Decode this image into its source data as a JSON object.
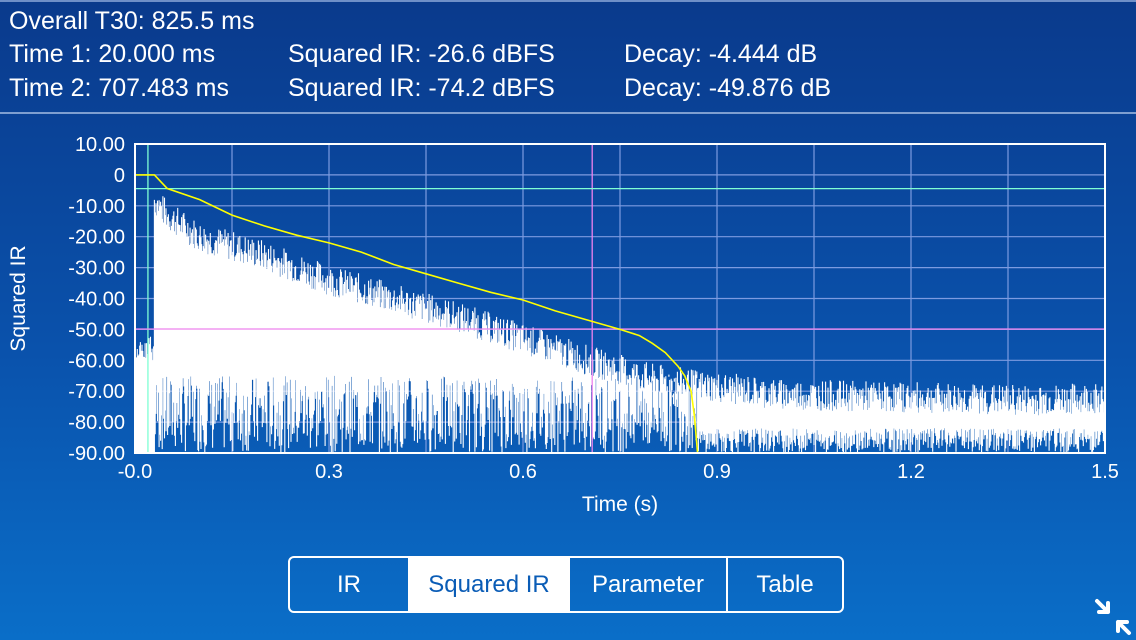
{
  "header": {
    "overall": "Overall T30:  825.5 ms",
    "time1": "Time 1: 20.000 ms",
    "sq1": "Squared IR: -26.6 dBFS",
    "decay1": "Decay: -4.444 dB",
    "time2": "Time 2: 707.483 ms",
    "sq2": "Squared IR: -74.2 dBFS",
    "decay2": "Decay: -49.876 dB"
  },
  "chart_data": {
    "type": "line",
    "xlabel": "Time (s)",
    "ylabel": "Squared IR",
    "xlim": [
      0,
      1.5
    ],
    "ylim": [
      -90,
      10
    ],
    "x_ticks": [
      "-0.0",
      "0.3",
      "0.6",
      "0.9",
      "1.2",
      "1.5"
    ],
    "y_ticks": [
      "10.00",
      "0",
      "-10.00",
      "-20.00",
      "-30.00",
      "-40.00",
      "-50.00",
      "-60.00",
      "-70.00",
      "-80.00",
      "-90.00"
    ],
    "grid": true,
    "series": [
      {
        "color": "#ffff00",
        "x": [
          0,
          0.03,
          0.05,
          0.1,
          0.15,
          0.2,
          0.25,
          0.3,
          0.35,
          0.4,
          0.45,
          0.5,
          0.55,
          0.6,
          0.65,
          0.7,
          0.75,
          0.78,
          0.8,
          0.82,
          0.84,
          0.85,
          0.86,
          0.865,
          0.87
        ],
        "y": [
          0,
          0,
          -4.4,
          -8,
          -13,
          -16.5,
          -19.5,
          -22,
          -25,
          -29,
          -32,
          -35,
          -38,
          -40.5,
          -44,
          -47,
          -50,
          -52,
          -54.5,
          -57.5,
          -62,
          -65,
          -70,
          -78,
          -90
        ]
      },
      {
        "color": "#ffffff",
        "x": [
          0.03,
          0.05,
          0.1,
          0.2,
          0.3,
          0.4,
          0.5,
          0.6,
          0.7,
          0.8,
          0.87,
          1.0,
          1.2,
          1.4,
          1.5
        ],
        "y": [
          -10,
          -15,
          -22,
          -28,
          -36,
          -42,
          -48,
          -55,
          -62,
          -68,
          -70,
          -73,
          -74,
          -75,
          -74
        ]
      }
    ],
    "cursors": [
      {
        "axis": "x",
        "value": 0.02,
        "color": "#7fffd4"
      },
      {
        "axis": "x",
        "value": 0.707,
        "color": "#ee82ee"
      },
      {
        "axis": "y",
        "value": -4.444,
        "color": "#7fffd4"
      },
      {
        "axis": "y",
        "value": -49.876,
        "color": "#ee82ee"
      }
    ]
  },
  "tabs": [
    {
      "label": "IR",
      "active": false
    },
    {
      "label": "Squared IR",
      "active": true
    },
    {
      "label": "Parameter",
      "active": false
    },
    {
      "label": "Table",
      "active": false
    }
  ],
  "icons": {
    "expand": "collapse-arrows-icon"
  }
}
